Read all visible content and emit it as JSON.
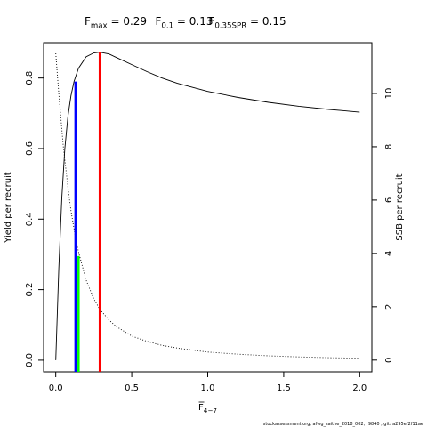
{
  "chart_data": {
    "type": "line",
    "title_parts": [
      {
        "base": "F",
        "sub": "max",
        "rest": " = 0.29"
      },
      {
        "base": "F",
        "sub": "0.1",
        "rest": " = 0.13"
      },
      {
        "base": "F",
        "sub": "0.35SPR",
        "rest": " = 0.15"
      }
    ],
    "xlabel": {
      "base": "F",
      "sub": "4−7"
    },
    "ylabel": "Yield per recruit",
    "ylabel_right": "SSB per recruit",
    "xlim": [
      -0.08,
      2.08
    ],
    "ylim": [
      -0.033,
      0.9
    ],
    "ylim_right": [
      -0.44,
      11.9
    ],
    "x_ticks": [
      0,
      0.5,
      1,
      1.5,
      2
    ],
    "x_tick_labels": [
      "0.0",
      "0.5",
      "1.0",
      "1.5",
      "2.0"
    ],
    "y_ticks": [
      0,
      0.2,
      0.4,
      0.6,
      0.8
    ],
    "y_tick_labels": [
      "0.0",
      "0.2",
      "0.4",
      "0.6",
      "0.8"
    ],
    "y_right_ticks": [
      0,
      2,
      4,
      6,
      8,
      10
    ],
    "y_right_tick_labels": [
      "0",
      "2",
      "4",
      "6",
      "8",
      "10"
    ],
    "grid": false,
    "series": [
      {
        "style": "solid",
        "axis": "left",
        "color": "#000000",
        "x": [
          0,
          0.02,
          0.04,
          0.06,
          0.08,
          0.1,
          0.12,
          0.15,
          0.2,
          0.25,
          0.29,
          0.35,
          0.4,
          0.5,
          0.6,
          0.7,
          0.8,
          1.0,
          1.2,
          1.4,
          1.6,
          1.8,
          2.0
        ],
        "y": [
          0,
          0.26,
          0.46,
          0.6,
          0.69,
          0.75,
          0.79,
          0.828,
          0.86,
          0.871,
          0.873,
          0.868,
          0.858,
          0.838,
          0.818,
          0.8,
          0.785,
          0.762,
          0.745,
          0.731,
          0.72,
          0.711,
          0.703
        ]
      },
      {
        "style": "dotted",
        "axis": "right",
        "color": "#000000",
        "x": [
          0,
          0.02,
          0.05,
          0.08,
          0.1,
          0.13,
          0.15,
          0.2,
          0.25,
          0.29,
          0.35,
          0.4,
          0.5,
          0.6,
          0.7,
          0.8,
          1.0,
          1.2,
          1.4,
          1.6,
          1.8,
          2.0
        ],
        "y": [
          11.5,
          10.0,
          8.0,
          6.5,
          5.6,
          4.6,
          4.05,
          3.0,
          2.3,
          1.9,
          1.5,
          1.25,
          0.9,
          0.7,
          0.55,
          0.45,
          0.3,
          0.22,
          0.16,
          0.12,
          0.09,
          0.07
        ]
      }
    ],
    "reference_lines": [
      {
        "x": 0.13,
        "y": 0.79,
        "color": "#0000ff"
      },
      {
        "x": 0.15,
        "y": 0.295,
        "color": "#00ff00"
      },
      {
        "x": 0.29,
        "y": 0.873,
        "color": "#ff0000"
      }
    ]
  },
  "credit": "stockassessment.org, afwg_saithe_2018_002, r9840 , git: a295ef2f11ae"
}
